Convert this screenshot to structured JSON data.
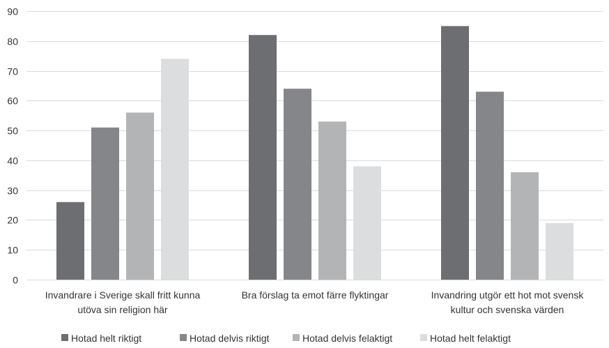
{
  "chart_data": {
    "type": "bar",
    "title": "",
    "xlabel": "",
    "ylabel": "",
    "ylim": [
      0,
      90
    ],
    "yticks": [
      0,
      10,
      20,
      30,
      40,
      50,
      60,
      70,
      80,
      90
    ],
    "grid": true,
    "legend_position": "bottom",
    "categories": [
      [
        "Invandrare i Sverige skall fritt kunna",
        "utöva sin religion här"
      ],
      [
        "Bra förslag ta emot färre flyktingar"
      ],
      [
        "Invandring utgör ett hot mot svensk",
        "kultur och svenska värden"
      ]
    ],
    "series": [
      {
        "name": "Hotad helt riktigt",
        "color": "#6d6e71",
        "values": [
          26,
          82,
          85
        ]
      },
      {
        "name": "Hotad delvis riktigt",
        "color": "#858689",
        "values": [
          51,
          64,
          63
        ]
      },
      {
        "name": "Hotad delvis felaktigt",
        "color": "#b3b4b6",
        "values": [
          56,
          53,
          36
        ]
      },
      {
        "name": "Hotad helt felaktigt",
        "color": "#dcdddf",
        "values": [
          74,
          38,
          19
        ]
      }
    ]
  }
}
